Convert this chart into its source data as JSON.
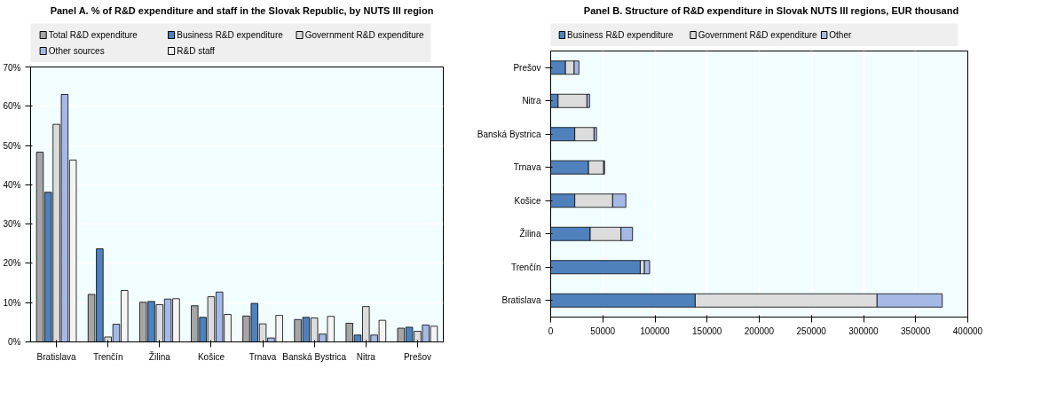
{
  "chart_data": [
    {
      "type": "bar",
      "title": "Panel A. % of R&D expenditure and staff in the Slovak Republic, by NUTS III region",
      "categories": [
        "Bratislava",
        "Trenčín",
        "Žilina",
        "Košice",
        "Trnava",
        "Banská Bystrica",
        "Nitra",
        "Prešov"
      ],
      "series": [
        {
          "name": "Total R&D expenditure",
          "color": "#a6a6a6",
          "values": [
            48.3,
            12.1,
            10.1,
            9.2,
            6.6,
            5.7,
            4.75,
            3.5
          ]
        },
        {
          "name": "Business R&D expenditure",
          "color": "#4f81bd",
          "values": [
            38.1,
            23.7,
            10.3,
            6.25,
            9.8,
            6.25,
            1.75,
            3.75
          ]
        },
        {
          "name": "Government R&D expenditure",
          "color": "#dcdcdc",
          "values": [
            55.4,
            1.25,
            9.5,
            11.5,
            4.6,
            6.1,
            9.0,
            2.7
          ]
        },
        {
          "name": "Other sources",
          "color": "#a6b8e6",
          "values": [
            63.0,
            4.5,
            10.9,
            12.7,
            1.0,
            2.0,
            1.75,
            4.3
          ]
        },
        {
          "name": "R&D staff",
          "color": "#f4f4f4",
          "values": [
            46.3,
            13.1,
            11.0,
            7.0,
            6.75,
            6.5,
            5.5,
            4.0
          ]
        }
      ],
      "ylim": [
        0,
        70
      ],
      "yticks": [
        {
          "value": 0,
          "label": "0%"
        },
        {
          "value": 10,
          "label": "10%"
        },
        {
          "value": 20,
          "label": "20%"
        },
        {
          "value": 30,
          "label": "30%"
        },
        {
          "value": 40,
          "label": "40%"
        },
        {
          "value": 50,
          "label": "50%"
        },
        {
          "value": 60,
          "label": "60%"
        },
        {
          "value": 70,
          "label": "70%"
        }
      ],
      "grid": true,
      "legend": "top"
    },
    {
      "type": "bar",
      "title": "Panel B. Structure of R&D expenditure in Slovak NUTS III regions, EUR thousand",
      "orientation": "horizontal",
      "stacked": true,
      "categories": [
        "Prešov",
        "Nitra",
        "Banská Bystrica",
        "Trnava",
        "Košice",
        "Žilina",
        "Trenčín",
        "Bratislava"
      ],
      "series": [
        {
          "name": "Business R&D expenditure",
          "color": "#4f81bd",
          "values": [
            14200,
            7100,
            23100,
            36300,
            23100,
            37900,
            85900,
            138600
          ]
        },
        {
          "name": "Government R&D expenditure",
          "color": "#dcdcdc",
          "values": [
            8300,
            27700,
            18500,
            14500,
            36300,
            29500,
            4000,
            174400
          ]
        },
        {
          "name": "Other",
          "color": "#a6b8e6",
          "values": [
            4600,
            2500,
            2400,
            900,
            12700,
            11100,
            5000,
            62500
          ]
        }
      ],
      "xlim": [
        0,
        400000
      ],
      "xticks": [
        0,
        50000,
        100000,
        150000,
        200000,
        250000,
        300000,
        350000,
        400000
      ],
      "grid": true,
      "legend": "top"
    }
  ]
}
